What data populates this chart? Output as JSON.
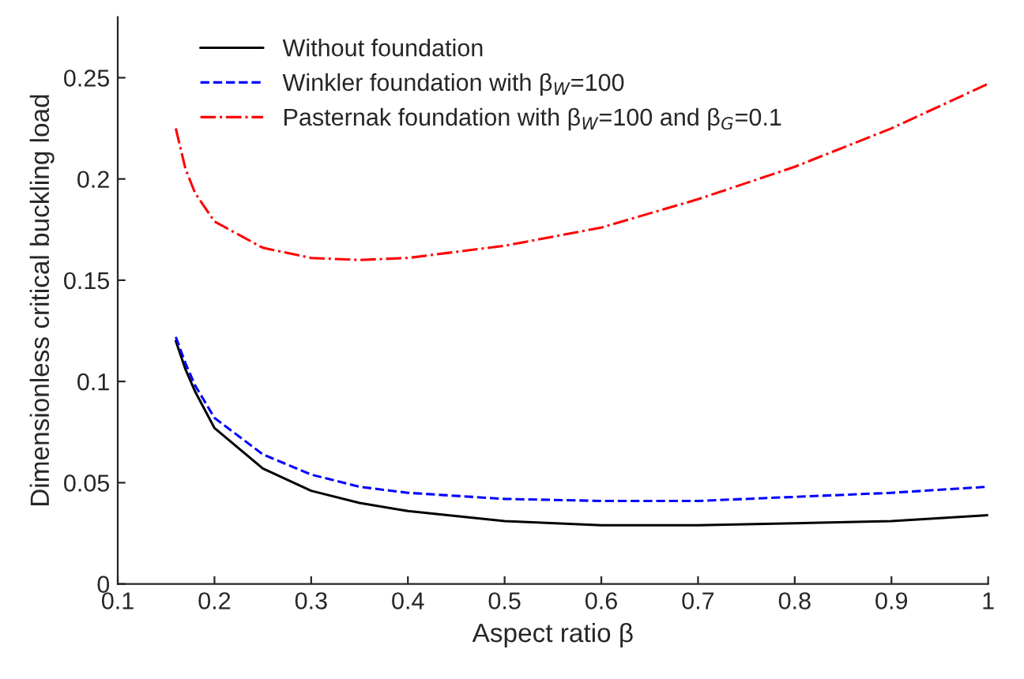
{
  "chart_data": {
    "type": "line",
    "xlabel": "Aspect ratio β",
    "ylabel": "Dimensionless critical buckling load",
    "xlim": [
      0.1,
      1
    ],
    "xticks": [
      0.1,
      0.2,
      0.3,
      0.4,
      0.5,
      0.6,
      0.7,
      0.8,
      0.9,
      1
    ],
    "ylim": [
      0,
      0.28
    ],
    "yticks": [
      0,
      0.05,
      0.1,
      0.15,
      0.2,
      0.25
    ],
    "grid": false,
    "legend": "top left",
    "marker": "none",
    "x": [
      0.16,
      0.17,
      0.18,
      0.2,
      0.25,
      0.3,
      0.35,
      0.4,
      0.5,
      0.6,
      0.7,
      0.8,
      0.9,
      1.0
    ],
    "series": [
      {
        "name": "Without foundation",
        "color": "#000000",
        "line_style": "solid",
        "values": [
          0.12,
          0.106,
          0.095,
          0.077,
          0.057,
          0.046,
          0.04,
          0.036,
          0.031,
          0.029,
          0.029,
          0.03,
          0.031,
          0.034
        ]
      },
      {
        "name": "Winkler foundation with β$_{W}$=100",
        "color": "#0000ff",
        "line_style": "dashed",
        "values": [
          0.122,
          0.109,
          0.098,
          0.082,
          0.064,
          0.054,
          0.048,
          0.045,
          0.042,
          0.041,
          0.041,
          0.043,
          0.045,
          0.048
        ]
      },
      {
        "name": "Pasternak foundation with β$_{W}$=100 and β$_{G}$=0.1",
        "color": "#ff0000",
        "line_style": "dashdot",
        "values": [
          0.225,
          0.205,
          0.193,
          0.179,
          0.166,
          0.161,
          0.16,
          0.161,
          0.167,
          0.176,
          0.19,
          0.206,
          0.225,
          0.247
        ]
      }
    ]
  }
}
